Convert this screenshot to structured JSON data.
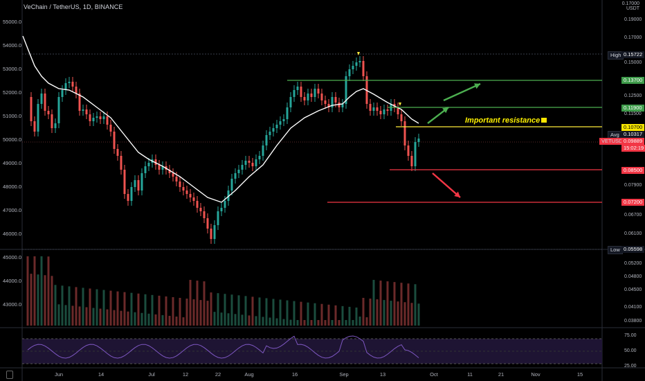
{
  "header": {
    "title": "VeChain / TetherUS, 1D, BINANCE",
    "currency": "USDT",
    "currency_top": "0.17000"
  },
  "left_axis": {
    "labels": [
      "55000.0",
      "54000.0",
      "53000.0",
      "52000.0",
      "51000.0",
      "50000.0",
      "49000.0",
      "48000.0",
      "47000.0",
      "46000.0",
      "45000.0",
      "44000.0",
      "43000.0"
    ]
  },
  "right_axis": {
    "labels": [
      "0.19000",
      "0.17000",
      "0.15000",
      "0.12500",
      "0.11500",
      "0.09500",
      "0.07900",
      "0.06700",
      "0.06100",
      "0.05200",
      "0.04800",
      "0.04500",
      "0.04100",
      "0.03800"
    ]
  },
  "rsi_axis": {
    "labels": [
      "75.00",
      "50.00",
      "25.00"
    ]
  },
  "x_axis": {
    "labels": [
      "Jun",
      "14",
      "Jul",
      "12",
      "22",
      "Aug",
      "16",
      "Sep",
      "13",
      "Oct",
      "11",
      "21",
      "Nov",
      "15"
    ]
  },
  "price_badges": [
    {
      "key": "high",
      "tag": "High",
      "value": "0.15722",
      "color": "#131722"
    },
    {
      "key": "r137",
      "tag": "",
      "value": "0.13700",
      "color": "#3f9c4b"
    },
    {
      "key": "r119",
      "tag": "",
      "value": "0.11900",
      "color": "#3f9c4b"
    },
    {
      "key": "r107",
      "tag": "",
      "value": "0.10700",
      "color": "#f5e400"
    },
    {
      "key": "avg",
      "tag": "Avg",
      "value": "0.10317",
      "color": "#131722"
    },
    {
      "key": "last",
      "tag": "VETUSDT",
      "value": "0.09889",
      "time": "15:02:19",
      "color": "#f23645"
    },
    {
      "key": "s085",
      "tag": "",
      "value": "0.08500",
      "color": "#f23645"
    },
    {
      "key": "s072",
      "tag": "",
      "value": "0.07200",
      "color": "#f23645"
    },
    {
      "key": "low",
      "tag": "Low",
      "value": "0.05598",
      "color": "#131722"
    }
  ],
  "annotation": {
    "text": "Important resistance"
  },
  "colors": {
    "up": "#26a69a",
    "down": "#ef5350",
    "green_line": "#4caf50",
    "yellow_line": "#ffeb3b",
    "red_line": "#f23645",
    "ma_line": "#ffffff",
    "rsi_line": "#7e57c2",
    "rsi_band": "#1e1433"
  },
  "chart_data": {
    "type": "candlestick",
    "symbol": "VETUSDT",
    "ma_visible": true,
    "volume_visible": true,
    "rsi_visible": true
  }
}
